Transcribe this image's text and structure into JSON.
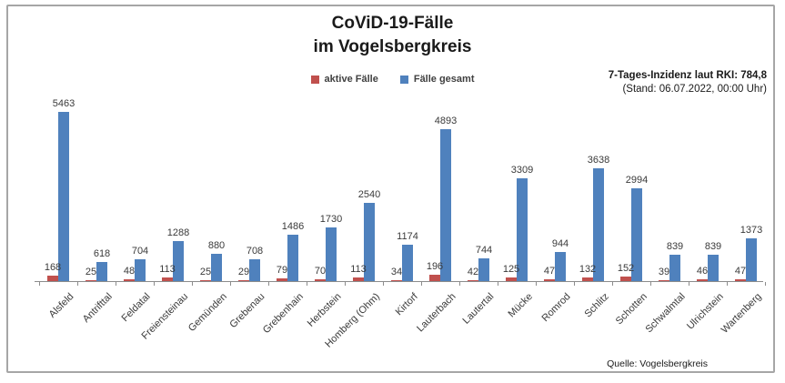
{
  "header": {
    "title_line1": "CoViD-19-Fälle",
    "title_line2": "im Vogelsbergkreis",
    "incidence_line1": "7-Tages-Inzidenz laut RKI: 784,8",
    "incidence_line2": "(Stand: 06.07.2022, 00:00 Uhr)"
  },
  "legend": [
    {
      "label": "aktive Fälle",
      "color": "#C0504D"
    },
    {
      "label": "Fälle gesamt",
      "color": "#4F81BD"
    }
  ],
  "footer": {
    "source": "Quelle: Vogelsbergkreis"
  },
  "chart_data": {
    "type": "bar",
    "title": "CoViD-19-Fälle im Vogelsbergkreis",
    "categories": [
      "Alsfeld",
      "Antrifttal",
      "Feldatal",
      "Freiensteinau",
      "Gemünden",
      "Grebenau",
      "Grebenhain",
      "Herbstein",
      "Homberg (Ohm)",
      "Kirtorf",
      "Lauterbach",
      "Lautertal",
      "Mücke",
      "Romrod",
      "Schlitz",
      "Schotten",
      "Schwalmtal",
      "Ulrichstein",
      "Wartenberg"
    ],
    "series": [
      {
        "name": "aktive Fälle",
        "color": "#C0504D",
        "values": [
          168,
          25,
          48,
          113,
          25,
          29,
          79,
          70,
          113,
          34,
          196,
          42,
          125,
          47,
          132,
          152,
          39,
          46,
          47
        ]
      },
      {
        "name": "Fälle gesamt",
        "color": "#4F81BD",
        "values": [
          5463,
          618,
          704,
          1288,
          880,
          708,
          1486,
          1730,
          2540,
          1174,
          4893,
          744,
          3309,
          944,
          3638,
          2994,
          839,
          839,
          1373
        ]
      }
    ],
    "xlabel": "",
    "ylabel": "",
    "ylim": [
      0,
      5600
    ],
    "grid": false,
    "y_axis_visible": false,
    "data_labels": true,
    "legend_position": "top-center",
    "annotation": "7-Tages-Inzidenz laut RKI: 784,8 (Stand: 06.07.2022, 00:00 Uhr)",
    "source": "Quelle: Vogelsbergkreis"
  }
}
